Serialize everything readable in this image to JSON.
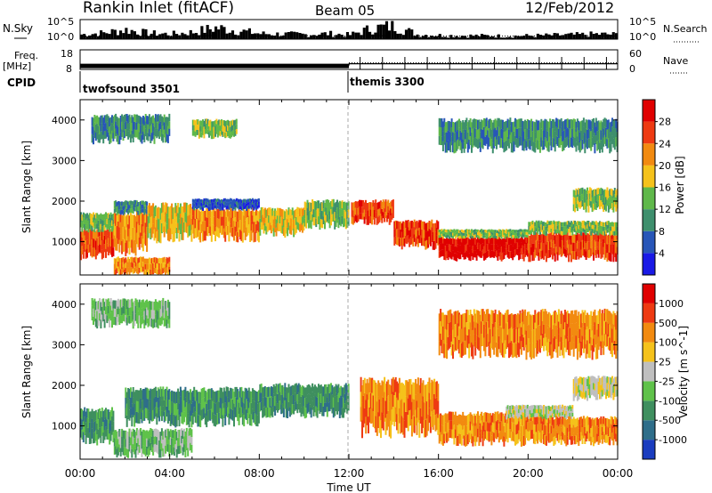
{
  "header": {
    "station": "Rankin Inlet (fitACF)",
    "beam": "Beam 05",
    "date": "12/Feb/2012"
  },
  "labels": {
    "nsky": "N.Sky",
    "nsearch": "N.Search",
    "freq_line1": "Freq.",
    "freq_line2": "[MHz]",
    "nave": "Nave",
    "cpid": "CPID",
    "time_axis": "Time UT"
  },
  "chart_data": [
    {
      "type": "line",
      "panel": "noise",
      "yticks": [
        "10^5",
        "10^0"
      ],
      "yticks_right": [
        "10^5",
        "10^0"
      ],
      "y_scale": "log",
      "series": [
        {
          "name": "N.Sky",
          "x_hours": [
            0,
            1,
            2,
            3,
            4,
            5,
            6,
            7,
            8,
            9,
            10,
            11,
            12,
            13,
            14,
            15,
            16,
            17,
            18,
            19,
            20,
            21,
            22,
            23,
            24
          ],
          "log10_values": [
            1.2,
            1.6,
            2.4,
            1.5,
            1.3,
            1.8,
            2.9,
            2.2,
            1.4,
            1.3,
            1.2,
            1.4,
            1.1,
            2.8,
            3.4,
            1.2,
            1.0,
            0.9,
            0.9,
            0.8,
            0.9,
            1.0,
            1.1,
            1.3,
            1.2
          ]
        },
        {
          "name": "N.Search",
          "x_hours": [
            0,
            2,
            4,
            6,
            8,
            10,
            12,
            14,
            16,
            18,
            20,
            22,
            24
          ],
          "log10_values": [
            0.8,
            0.9,
            0.8,
            0.9,
            0.8,
            0.9,
            0.8,
            0.9,
            0.8,
            0.8,
            0.8,
            0.9,
            0.8
          ]
        }
      ]
    },
    {
      "type": "line",
      "panel": "frequency",
      "yticks": [
        "18",
        "8"
      ],
      "yticks_right": [
        "60",
        "0"
      ],
      "series": [
        {
          "name": "Freq.",
          "x_hours": [
            0,
            12,
            12.01,
            24
          ],
          "values": [
            10.2,
            10.2,
            10.9,
            10.9
          ]
        },
        {
          "name": "Nave",
          "x_hours": [
            0,
            24
          ],
          "values": [
            20,
            20
          ]
        }
      ]
    },
    {
      "type": "table",
      "panel": "cpid",
      "segments": [
        {
          "start_hour": 0,
          "label": "twofsound 3501"
        },
        {
          "start_hour": 12,
          "label": "themis 3300"
        }
      ]
    },
    {
      "type": "heatmap",
      "panel": "power",
      "ylabel": "Slant Range [km]",
      "ylim": [
        180,
        4500
      ],
      "xlim": [
        0,
        24
      ],
      "yticks": [
        1000,
        2000,
        3000,
        4000
      ],
      "colorbar": {
        "label": "Power [dB]",
        "ticks": [
          "4",
          "8",
          "12",
          "16",
          "20",
          "24",
          "28"
        ],
        "colors": [
          "#1a1ae6",
          "#2856b8",
          "#3e8f6d",
          "#5fb84a",
          "#f5c21b",
          "#f28a10",
          "#ee3a12",
          "#e00000"
        ]
      },
      "bands": [
        {
          "t0": 0.0,
          "t1": 1.5,
          "r0": 650,
          "r1": 1300,
          "level": 6
        },
        {
          "t0": 0.0,
          "t1": 1.5,
          "r0": 1300,
          "r1": 1700,
          "level": 3
        },
        {
          "t0": 1.5,
          "t1": 3.0,
          "r0": 800,
          "r1": 1700,
          "level": 5
        },
        {
          "t0": 1.5,
          "t1": 3.0,
          "r0": 1700,
          "r1": 2000,
          "level": 2
        },
        {
          "t0": 1.5,
          "t1": 4.0,
          "r0": 200,
          "r1": 600,
          "level": 5
        },
        {
          "t0": 3.0,
          "t1": 5.0,
          "r0": 1100,
          "r1": 1900,
          "level": 4
        },
        {
          "t0": 5.0,
          "t1": 8.0,
          "r0": 1100,
          "r1": 1800,
          "level": 5
        },
        {
          "t0": 5.0,
          "t1": 8.0,
          "r0": 1800,
          "r1": 2050,
          "level": 1
        },
        {
          "t0": 8.0,
          "t1": 10.0,
          "r0": 1200,
          "r1": 1800,
          "level": 4
        },
        {
          "t0": 10.0,
          "t1": 12.0,
          "r0": 1400,
          "r1": 2000,
          "level": 3
        },
        {
          "t0": 12.1,
          "t1": 14.0,
          "r0": 1500,
          "r1": 2000,
          "level": 6
        },
        {
          "t0": 14.0,
          "t1": 16.0,
          "r0": 900,
          "r1": 1500,
          "level": 6
        },
        {
          "t0": 16.0,
          "t1": 20.0,
          "r0": 600,
          "r1": 1100,
          "level": 7
        },
        {
          "t0": 16.0,
          "t1": 20.0,
          "r0": 1100,
          "r1": 1300,
          "level": 3
        },
        {
          "t0": 20.0,
          "t1": 24.0,
          "r0": 600,
          "r1": 1200,
          "level": 6
        },
        {
          "t0": 20.0,
          "t1": 24.0,
          "r0": 1200,
          "r1": 1500,
          "level": 3
        },
        {
          "t0": 22.0,
          "t1": 24.0,
          "r0": 1800,
          "r1": 2300,
          "level": 3
        },
        {
          "t0": 0.5,
          "t1": 4.0,
          "r0": 3500,
          "r1": 4100,
          "level": 2
        },
        {
          "t0": 5.0,
          "t1": 7.0,
          "r0": 3600,
          "r1": 4000,
          "level": 3
        },
        {
          "t0": 16.0,
          "t1": 24.0,
          "r0": 3300,
          "r1": 4000,
          "level": 2
        }
      ]
    },
    {
      "type": "heatmap",
      "panel": "velocity",
      "ylabel": "Slant Range [km]",
      "ylim": [
        180,
        4500
      ],
      "xlim": [
        0,
        24
      ],
      "yticks": [
        1000,
        2000,
        3000,
        4000
      ],
      "colorbar": {
        "label": "Velocity [m s^-1]",
        "ticks": [
          "1000",
          "500",
          "100",
          "25",
          "-25",
          "-100",
          "-500",
          "-1000"
        ],
        "colors": [
          "#1a3cbf",
          "#2f6e8a",
          "#3f8f5f",
          "#5fc24a",
          "#bfbfbf",
          "#f5c21b",
          "#f28a10",
          "#ee3a12",
          "#e00000"
        ]
      },
      "bands": [
        {
          "t0": 0.0,
          "t1": 1.5,
          "r0": 650,
          "r1": 1400,
          "level": 2
        },
        {
          "t0": 1.5,
          "t1": 5.0,
          "r0": 300,
          "r1": 900,
          "level": 3
        },
        {
          "t0": 2.0,
          "t1": 8.0,
          "r0": 1100,
          "r1": 1900,
          "level": 2
        },
        {
          "t0": 8.0,
          "t1": 12.0,
          "r0": 1300,
          "r1": 2000,
          "level": 2
        },
        {
          "t0": 12.5,
          "t1": 16.0,
          "r0": 900,
          "r1": 2100,
          "level": 6
        },
        {
          "t0": 16.0,
          "t1": 21.0,
          "r0": 600,
          "r1": 1300,
          "level": 6
        },
        {
          "t0": 19.0,
          "t1": 22.0,
          "r0": 1200,
          "r1": 1500,
          "level": 4
        },
        {
          "t0": 21.0,
          "t1": 24.0,
          "r0": 600,
          "r1": 1200,
          "level": 6
        },
        {
          "t0": 22.0,
          "t1": 24.0,
          "r0": 1700,
          "r1": 2200,
          "level": 4
        },
        {
          "t0": 0.5,
          "t1": 4.0,
          "r0": 3500,
          "r1": 4100,
          "level": 3
        },
        {
          "t0": 16.0,
          "t1": 24.0,
          "r0": 2800,
          "r1": 3800,
          "level": 6
        }
      ]
    }
  ],
  "x_axis": {
    "ticks": [
      "00:00",
      "04:00",
      "08:00",
      "12:00",
      "16:00",
      "20:00",
      "00:00"
    ],
    "tick_hours": [
      0,
      4,
      8,
      12,
      16,
      20,
      24
    ],
    "minor_step_hours": 1
  }
}
